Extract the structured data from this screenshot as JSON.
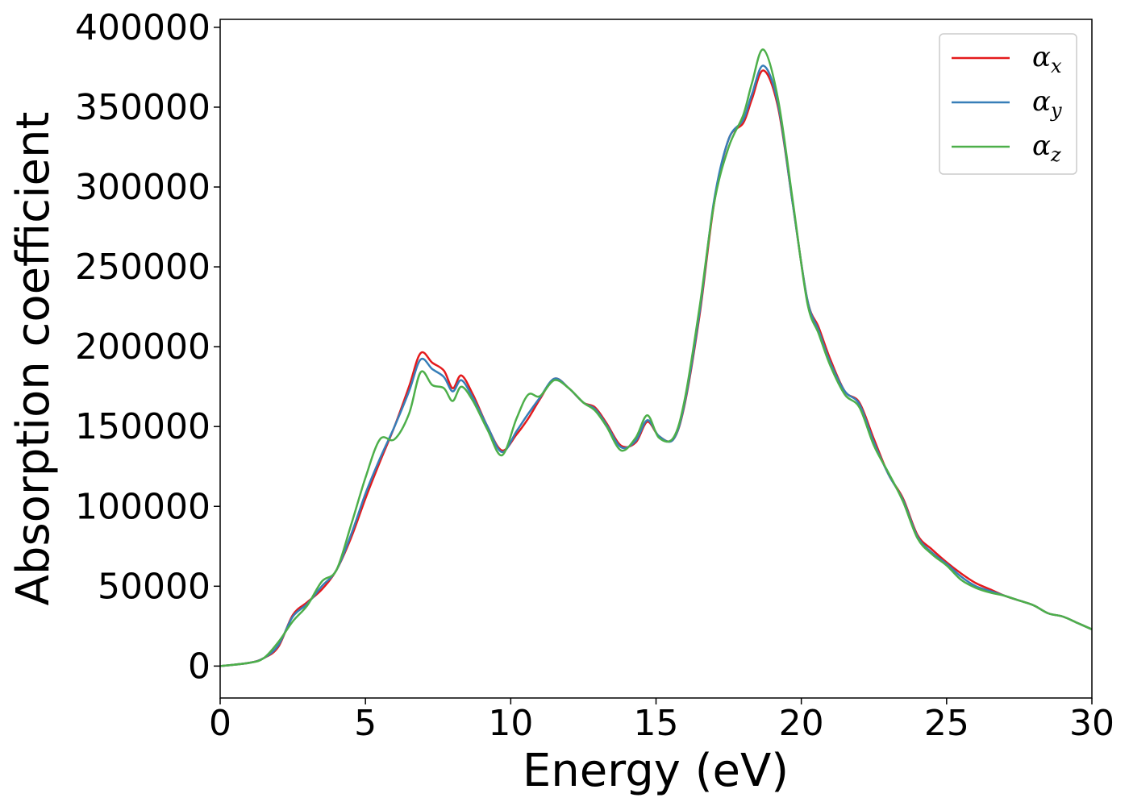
{
  "chart_data": {
    "type": "line",
    "xlabel": "Energy (eV)",
    "ylabel": "Absorption coefficient",
    "xlim": [
      0,
      30
    ],
    "ylim": [
      -20000,
      405000
    ],
    "xticks": [
      0,
      5,
      10,
      15,
      20,
      25,
      30
    ],
    "yticks": [
      0,
      50000,
      100000,
      150000,
      200000,
      250000,
      300000,
      350000,
      400000
    ],
    "grid": false,
    "legend_position": "top-right",
    "series": [
      {
        "name": "α",
        "subscript": "x",
        "color": "#e41a1c",
        "x": [
          0,
          1,
          1.5,
          2,
          2.5,
          3,
          3.5,
          4,
          4.5,
          5,
          5.5,
          6,
          6.5,
          6.9,
          7.3,
          7.7,
          8,
          8.3,
          8.7,
          9.2,
          9.7,
          10.2,
          10.6,
          11,
          11.5,
          12,
          12.5,
          12.9,
          13.3,
          13.8,
          14.3,
          14.7,
          15.1,
          15.6,
          16,
          16.5,
          17,
          17.5,
          18,
          18.3,
          18.7,
          19.2,
          19.7,
          20.2,
          20.6,
          21,
          21.5,
          22,
          22.5,
          23,
          23.5,
          24,
          24.5,
          25,
          25.5,
          26,
          26.5,
          27,
          27.5,
          28,
          28.5,
          29,
          29.5,
          30
        ],
        "y": [
          0,
          2000,
          5000,
          12000,
          32000,
          40000,
          48000,
          60000,
          80000,
          105000,
          128000,
          150000,
          175000,
          196000,
          190000,
          185000,
          174000,
          182000,
          170000,
          150000,
          135000,
          145000,
          155000,
          167000,
          180000,
          174000,
          165000,
          162000,
          152000,
          138000,
          140000,
          153000,
          144000,
          142000,
          165000,
          220000,
          290000,
          330000,
          340000,
          355000,
          373000,
          350000,
          290000,
          230000,
          212000,
          192000,
          172000,
          165000,
          142000,
          120000,
          105000,
          82000,
          73000,
          65000,
          58000,
          52000,
          48000,
          44000,
          41000,
          38000,
          33000,
          31000,
          27000,
          23000
        ]
      },
      {
        "name": "α",
        "subscript": "y",
        "color": "#377eb8",
        "x": [
          0,
          1,
          1.5,
          2,
          2.5,
          3,
          3.5,
          4,
          4.5,
          5,
          5.5,
          6,
          6.5,
          6.9,
          7.3,
          7.7,
          8,
          8.3,
          8.7,
          9.2,
          9.7,
          10.2,
          10.6,
          11,
          11.5,
          12,
          12.5,
          12.9,
          13.3,
          13.8,
          14.3,
          14.7,
          15.1,
          15.6,
          16,
          16.5,
          17,
          17.5,
          18,
          18.3,
          18.7,
          19.2,
          19.7,
          20.2,
          20.6,
          21,
          21.5,
          22,
          22.5,
          23,
          23.5,
          24,
          24.5,
          25,
          25.5,
          26,
          26.5,
          27,
          27.5,
          28,
          28.5,
          29,
          29.5,
          30
        ],
        "y": [
          0,
          2000,
          5000,
          13000,
          31000,
          39000,
          50000,
          60000,
          82000,
          108000,
          130000,
          150000,
          172000,
          192000,
          186000,
          181000,
          172000,
          179000,
          168000,
          150000,
          134000,
          147000,
          158000,
          168000,
          180000,
          174000,
          165000,
          161000,
          151000,
          137000,
          141000,
          154000,
          144000,
          142000,
          166000,
          222000,
          292000,
          330000,
          342000,
          358000,
          376000,
          352000,
          290000,
          230000,
          210000,
          190000,
          172000,
          164000,
          140000,
          120000,
          104000,
          81000,
          71000,
          64000,
          56000,
          50000,
          47000,
          44000,
          41000,
          38000,
          33000,
          31000,
          27000,
          23000
        ]
      },
      {
        "name": "α",
        "subscript": "z",
        "color": "#4daf4a",
        "x": [
          0,
          1,
          1.5,
          2,
          2.5,
          3,
          3.5,
          4,
          4.5,
          5,
          5.5,
          6,
          6.5,
          6.9,
          7.3,
          7.7,
          8,
          8.3,
          8.7,
          9.2,
          9.7,
          10.2,
          10.6,
          11,
          11.5,
          12,
          12.5,
          12.9,
          13.3,
          13.8,
          14.3,
          14.7,
          15.1,
          15.6,
          16,
          16.5,
          17,
          17.5,
          18,
          18.3,
          18.7,
          19.2,
          19.7,
          20.2,
          20.6,
          21,
          21.5,
          22,
          22.5,
          23,
          23.5,
          24,
          24.5,
          25,
          25.5,
          26,
          26.5,
          27,
          27.5,
          28,
          28.5,
          29,
          29.5,
          30
        ],
        "y": [
          0,
          2000,
          5000,
          15000,
          28000,
          38000,
          53000,
          60000,
          88000,
          118000,
          142000,
          142000,
          158000,
          184000,
          176000,
          174000,
          166000,
          175000,
          166000,
          148000,
          132000,
          155000,
          170000,
          169000,
          179000,
          174000,
          165000,
          160000,
          150000,
          135000,
          143000,
          157000,
          143000,
          143000,
          168000,
          225000,
          290000,
          325000,
          345000,
          365000,
          386000,
          355000,
          292000,
          228000,
          208000,
          188000,
          170000,
          162000,
          138000,
          121000,
          103000,
          80000,
          70000,
          63000,
          54000,
          49000,
          46000,
          44000,
          41000,
          38000,
          33000,
          31000,
          27000,
          23000
        ]
      }
    ]
  }
}
